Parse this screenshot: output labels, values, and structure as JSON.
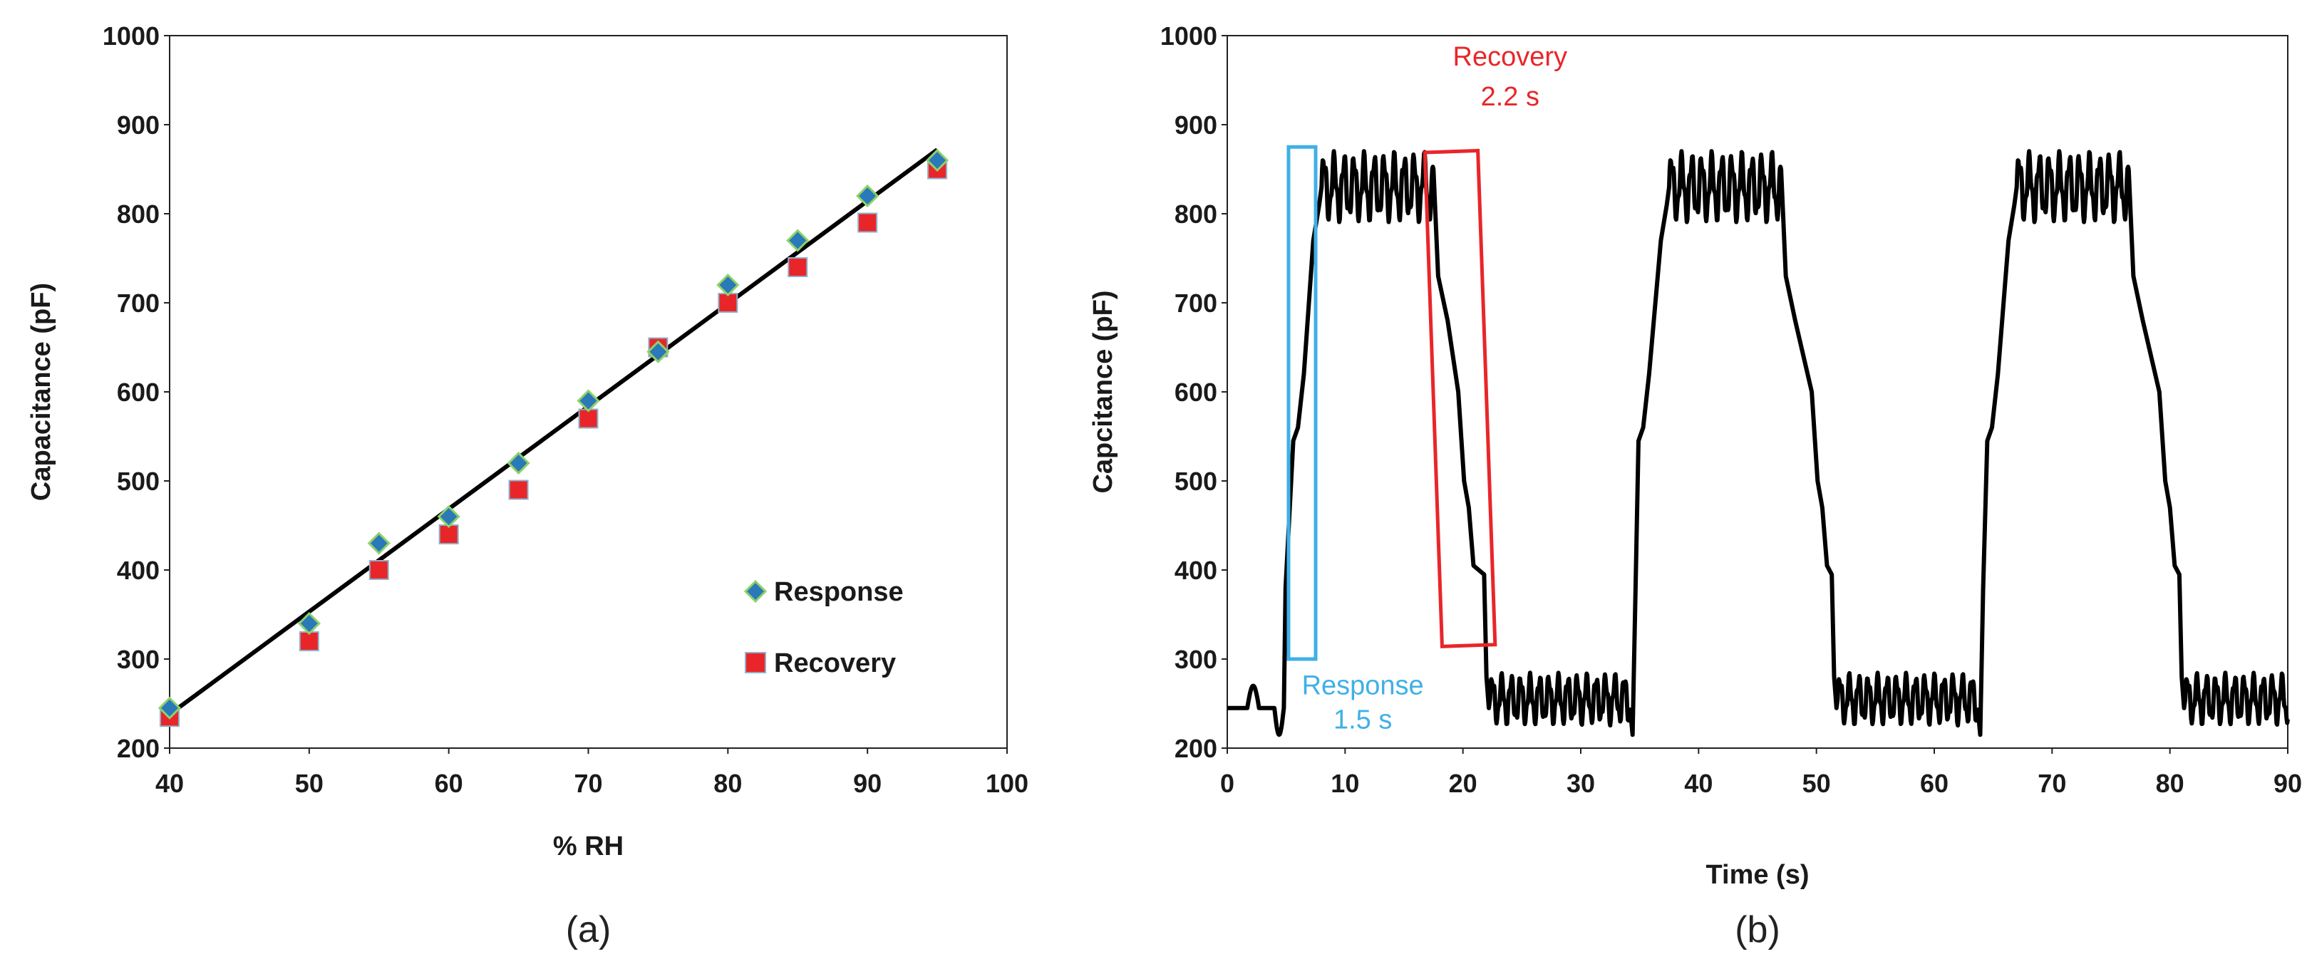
{
  "colors": {
    "response_marker": "#2a79b8",
    "response_marker_edge": "#8fd16a",
    "recovery_marker": "#e8262a",
    "recovery_marker_edge": "#8fb0c8",
    "fit_line": "#000000",
    "trace": "#000000",
    "response_box": "#3fb0e6",
    "recovery_box": "#e8262a"
  },
  "chart_data": [
    {
      "type": "scatter",
      "panel_label": "(a)",
      "title": "",
      "xlabel": "% RH",
      "ylabel": "Capacitance (pF)",
      "xlim": [
        40,
        100
      ],
      "ylim": [
        200,
        1000
      ],
      "xticks": [
        40,
        50,
        60,
        70,
        80,
        90,
        100
      ],
      "yticks": [
        200,
        300,
        400,
        500,
        600,
        700,
        800,
        900,
        1000
      ],
      "legend_position": "bottom-right",
      "series": [
        {
          "name": "Response",
          "marker": "diamond",
          "x": [
            40,
            50,
            55,
            60,
            65,
            70,
            75,
            80,
            85,
            90,
            95
          ],
          "y": [
            245,
            340,
            430,
            460,
            520,
            590,
            645,
            720,
            770,
            820,
            860
          ]
        },
        {
          "name": "Recovery",
          "marker": "square",
          "x": [
            40,
            50,
            55,
            60,
            65,
            70,
            75,
            80,
            85,
            90,
            95
          ],
          "y": [
            235,
            320,
            400,
            440,
            490,
            570,
            650,
            700,
            740,
            790,
            850
          ]
        }
      ],
      "fit_line": {
        "x": [
          40,
          95
        ],
        "y": [
          238,
          872
        ]
      }
    },
    {
      "type": "line",
      "panel_label": "(b)",
      "title": "",
      "xlabel": "Time (s)",
      "ylabel": "Capcitance (pF)",
      "xlim": [
        0,
        90
      ],
      "ylim": [
        200,
        1000
      ],
      "xticks": [
        0,
        10,
        20,
        30,
        40,
        50,
        60,
        70,
        80,
        90
      ],
      "yticks": [
        200,
        300,
        400,
        500,
        600,
        700,
        800,
        900,
        1000
      ],
      "cycles": [
        {
          "rise_start": 4.8,
          "rise_mid": 5.7,
          "plateau_start": 8.0,
          "fall_start": 17.5,
          "fall_step": 20.5,
          "fall_end": 22.0
        },
        {
          "rise_start": 34.5,
          "rise_mid": 35.0,
          "plateau_start": 37.5,
          "fall_start": 47.0,
          "fall_step": 50.5,
          "fall_end": 51.5
        },
        {
          "rise_start": 64.0,
          "rise_mid": 64.6,
          "plateau_start": 67.0,
          "fall_start": 76.5,
          "fall_step": 80.0,
          "fall_end": 81.0
        }
      ],
      "baseline_pF": 255,
      "plateau_pF": 830,
      "annotations": [
        {
          "label_line1": "Response",
          "label_line2": "1.5 s",
          "box_x": [
            5.2,
            7.5
          ],
          "box_y": [
            300,
            875
          ],
          "label_x": 11.5,
          "label_y": 270
        },
        {
          "label_line1": "Recovery",
          "label_line2": "2.2 s",
          "box_x": [
            17.5,
            22.0
          ],
          "box_y": [
            315,
            870
          ],
          "label_x": 24,
          "label_y": 1000
        }
      ]
    }
  ]
}
